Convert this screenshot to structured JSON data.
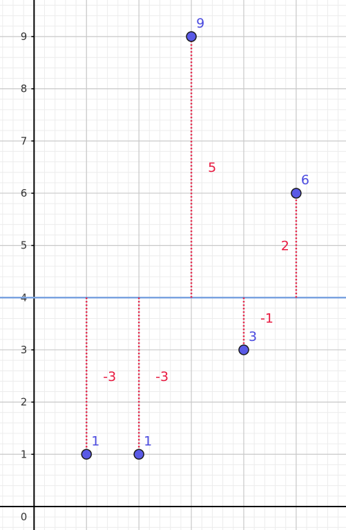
{
  "chart_data": {
    "type": "scatter",
    "title": "",
    "xlabel": "",
    "ylabel": "",
    "xlim": [
      -0.65,
      5.95
    ],
    "ylim": [
      -0.45,
      9.7
    ],
    "x_tick_labels": [],
    "y_ticks": [
      0,
      1,
      2,
      3,
      4,
      5,
      6,
      7,
      8,
      9
    ],
    "y_tick_labels": [
      "0",
      "1",
      "2",
      "3",
      "4",
      "5",
      "6",
      "7",
      "8",
      "9"
    ],
    "grid": true,
    "minor_grid": true,
    "mean_line": {
      "y": 4,
      "color": "#7aa3e0"
    },
    "points": [
      {
        "x": 1,
        "y": 1,
        "label": "1",
        "deviation": -3,
        "deviation_label": "-3"
      },
      {
        "x": 2,
        "y": 1,
        "label": "1",
        "deviation": -3,
        "deviation_label": "-3"
      },
      {
        "x": 3,
        "y": 9,
        "label": "9",
        "deviation": 5,
        "deviation_label": "5"
      },
      {
        "x": 4,
        "y": 3,
        "label": "3",
        "deviation": -1,
        "deviation_label": "-1"
      },
      {
        "x": 5,
        "y": 6,
        "label": "6",
        "deviation": 2,
        "deviation_label": "2"
      }
    ],
    "colors": {
      "point_fill": "#5a5ae6",
      "point_stroke": "#1a1a1a",
      "point_label": "#4a4ae0",
      "deviation": "#e8173e",
      "major_grid": "#c8c8c8",
      "minor_grid": "#ececec",
      "axis": "#000000"
    }
  }
}
